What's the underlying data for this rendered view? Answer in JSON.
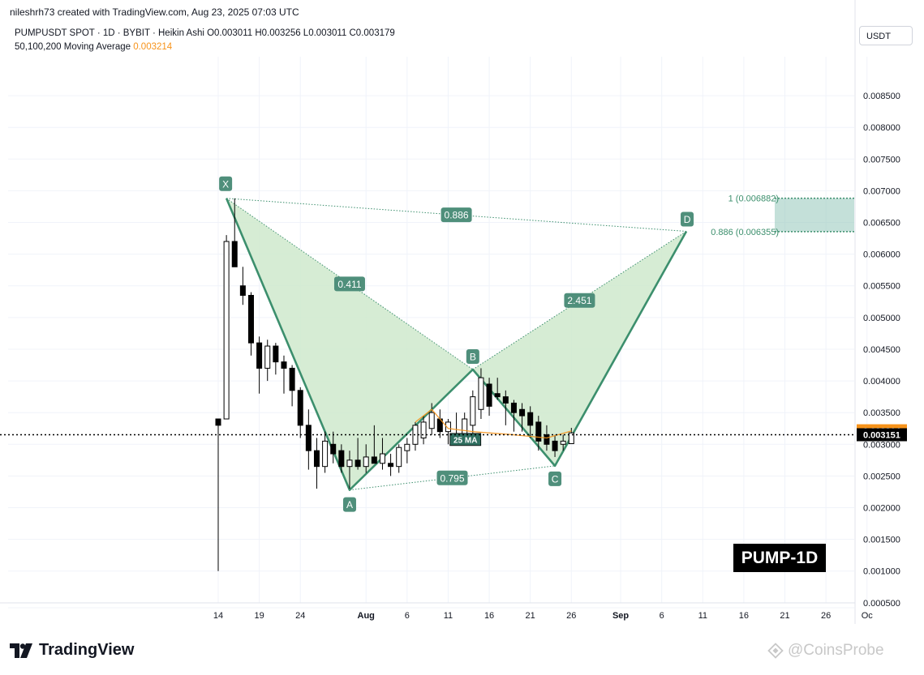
{
  "header": {
    "credit": "nileshrh73 created with TradingView.com, Aug 23, 2025 07:03 UTC",
    "symbol_line": "PUMPUSDT SPOT · 1D · BYBIT · Heikin Ashi  O0.003011  H0.003256  L0.003011  C0.003179",
    "ma_label": "50,100,200 Moving Average",
    "ma_value": "0.003214",
    "currency": "USDT"
  },
  "badge": "PUMP-1D",
  "brand": {
    "logo_text": "TradingView",
    "watermark": "@CoinsProbe"
  },
  "colors": {
    "pattern_fill": "#cfe9cc",
    "pattern_line": "#3c8f6d",
    "label_bg": "#4f8f7b",
    "candle": "#000000",
    "ma_line": "#f7931a",
    "price_label": "#000000",
    "ma_label": "#f7931a",
    "target_zone": "#9dcbc0"
  },
  "chart_data": {
    "type": "candlestick",
    "style": "Heikin Ashi",
    "ylim": [
      0.0003,
      0.0093
    ],
    "x_start": "2025-07-12",
    "x_end": "2025-10-01",
    "y_ticks": [
      "0.008500",
      "0.008000",
      "0.007500",
      "0.007000",
      "0.006500",
      "0.006000",
      "0.005500",
      "0.005000",
      "0.004500",
      "0.004000",
      "0.003500",
      "0.003000",
      "0.002500",
      "0.002000",
      "0.001500",
      "0.001000",
      "0.000500"
    ],
    "x_ticks": [
      {
        "date": "2025-07-14",
        "label": "14"
      },
      {
        "date": "2025-07-19",
        "label": "19"
      },
      {
        "date": "2025-07-24",
        "label": "24"
      },
      {
        "date": "2025-08-01",
        "label": "Aug"
      },
      {
        "date": "2025-08-06",
        "label": "6"
      },
      {
        "date": "2025-08-11",
        "label": "11"
      },
      {
        "date": "2025-08-16",
        "label": "16"
      },
      {
        "date": "2025-08-21",
        "label": "21"
      },
      {
        "date": "2025-08-26",
        "label": "26"
      },
      {
        "date": "2025-09-01",
        "label": "Sep"
      },
      {
        "date": "2025-09-06",
        "label": "6"
      },
      {
        "date": "2025-09-11",
        "label": "11"
      },
      {
        "date": "2025-09-16",
        "label": "16"
      },
      {
        "date": "2025-09-21",
        "label": "21"
      },
      {
        "date": "2025-09-26",
        "label": "26"
      },
      {
        "date": "2025-10-01",
        "label": "Oc"
      }
    ],
    "candles": [
      {
        "date": "2025-07-14",
        "o": 0.0034,
        "h": 0.0034,
        "l": 0.001,
        "c": 0.0033
      },
      {
        "date": "2025-07-15",
        "o": 0.0034,
        "h": 0.0063,
        "l": 0.0034,
        "c": 0.0062
      },
      {
        "date": "2025-07-16",
        "o": 0.0062,
        "h": 0.00688,
        "l": 0.0058,
        "c": 0.0058
      },
      {
        "date": "2025-07-17",
        "o": 0.0055,
        "h": 0.0058,
        "l": 0.0052,
        "c": 0.00535
      },
      {
        "date": "2025-07-18",
        "o": 0.00535,
        "h": 0.0054,
        "l": 0.0044,
        "c": 0.0046
      },
      {
        "date": "2025-07-19",
        "o": 0.0046,
        "h": 0.0047,
        "l": 0.0038,
        "c": 0.0042
      },
      {
        "date": "2025-07-20",
        "o": 0.0042,
        "h": 0.00465,
        "l": 0.004,
        "c": 0.00455
      },
      {
        "date": "2025-07-21",
        "o": 0.00455,
        "h": 0.0046,
        "l": 0.0041,
        "c": 0.0043
      },
      {
        "date": "2025-07-22",
        "o": 0.0043,
        "h": 0.0044,
        "l": 0.0038,
        "c": 0.0042
      },
      {
        "date": "2025-07-23",
        "o": 0.0042,
        "h": 0.00425,
        "l": 0.0036,
        "c": 0.00385
      },
      {
        "date": "2025-07-24",
        "o": 0.00385,
        "h": 0.0039,
        "l": 0.0031,
        "c": 0.0033
      },
      {
        "date": "2025-07-25",
        "o": 0.0033,
        "h": 0.00355,
        "l": 0.0026,
        "c": 0.0029
      },
      {
        "date": "2025-07-26",
        "o": 0.0029,
        "h": 0.0031,
        "l": 0.0023,
        "c": 0.00265
      },
      {
        "date": "2025-07-27",
        "o": 0.00265,
        "h": 0.0032,
        "l": 0.00255,
        "c": 0.00305
      },
      {
        "date": "2025-07-28",
        "o": 0.003,
        "h": 0.0032,
        "l": 0.0027,
        "c": 0.00285
      },
      {
        "date": "2025-07-29",
        "o": 0.0029,
        "h": 0.003,
        "l": 0.00255,
        "c": 0.00265
      },
      {
        "date": "2025-07-30",
        "o": 0.00265,
        "h": 0.0029,
        "l": 0.0023,
        "c": 0.00275
      },
      {
        "date": "2025-07-31",
        "o": 0.00275,
        "h": 0.0031,
        "l": 0.0026,
        "c": 0.00265
      },
      {
        "date": "2025-08-01",
        "o": 0.00265,
        "h": 0.003,
        "l": 0.00255,
        "c": 0.0028
      },
      {
        "date": "2025-08-02",
        "o": 0.0028,
        "h": 0.0033,
        "l": 0.0027,
        "c": 0.0027
      },
      {
        "date": "2025-08-03",
        "o": 0.0027,
        "h": 0.0031,
        "l": 0.0026,
        "c": 0.00285
      },
      {
        "date": "2025-08-04",
        "o": 0.0027,
        "h": 0.00285,
        "l": 0.0025,
        "c": 0.00265
      },
      {
        "date": "2025-08-05",
        "o": 0.00265,
        "h": 0.003,
        "l": 0.00255,
        "c": 0.00295
      },
      {
        "date": "2025-08-06",
        "o": 0.0029,
        "h": 0.0031,
        "l": 0.0027,
        "c": 0.003
      },
      {
        "date": "2025-08-07",
        "o": 0.003,
        "h": 0.00335,
        "l": 0.0029,
        "c": 0.0033
      },
      {
        "date": "2025-08-08",
        "o": 0.0031,
        "h": 0.00345,
        "l": 0.003,
        "c": 0.00335
      },
      {
        "date": "2025-08-09",
        "o": 0.00325,
        "h": 0.00365,
        "l": 0.00315,
        "c": 0.0035
      },
      {
        "date": "2025-08-10",
        "o": 0.0034,
        "h": 0.00355,
        "l": 0.0031,
        "c": 0.0032
      },
      {
        "date": "2025-08-11",
        "o": 0.0032,
        "h": 0.0034,
        "l": 0.003,
        "c": 0.00335
      },
      {
        "date": "2025-08-12",
        "o": 0.00315,
        "h": 0.0035,
        "l": 0.003,
        "c": 0.0031
      },
      {
        "date": "2025-08-13",
        "o": 0.0031,
        "h": 0.0035,
        "l": 0.0031,
        "c": 0.0034
      },
      {
        "date": "2025-08-14",
        "o": 0.0033,
        "h": 0.00385,
        "l": 0.00315,
        "c": 0.00375
      },
      {
        "date": "2025-08-15",
        "o": 0.00355,
        "h": 0.0042,
        "l": 0.0034,
        "c": 0.00405
      },
      {
        "date": "2025-08-16",
        "o": 0.00395,
        "h": 0.00405,
        "l": 0.00345,
        "c": 0.0036
      },
      {
        "date": "2025-08-17",
        "o": 0.0038,
        "h": 0.00405,
        "l": 0.0037,
        "c": 0.00375
      },
      {
        "date": "2025-08-18",
        "o": 0.00375,
        "h": 0.00385,
        "l": 0.0033,
        "c": 0.00365
      },
      {
        "date": "2025-08-19",
        "o": 0.00365,
        "h": 0.0037,
        "l": 0.0032,
        "c": 0.0035
      },
      {
        "date": "2025-08-20",
        "o": 0.00355,
        "h": 0.00365,
        "l": 0.0032,
        "c": 0.00345
      },
      {
        "date": "2025-08-21",
        "o": 0.0035,
        "h": 0.0036,
        "l": 0.0031,
        "c": 0.0033
      },
      {
        "date": "2025-08-22",
        "o": 0.00335,
        "h": 0.00345,
        "l": 0.0029,
        "c": 0.00305
      },
      {
        "date": "2025-08-23",
        "o": 0.00315,
        "h": 0.0033,
        "l": 0.0029,
        "c": 0.003
      },
      {
        "date": "2025-08-24",
        "o": 0.00305,
        "h": 0.00315,
        "l": 0.0028,
        "c": 0.0029
      },
      {
        "date": "2025-08-25",
        "o": 0.003,
        "h": 0.00315,
        "l": 0.0029,
        "c": 0.00305
      },
      {
        "date": "2025-08-26",
        "o": 0.00301,
        "h": 0.00326,
        "l": 0.00301,
        "c": 0.00318
      }
    ],
    "ma_line": {
      "label": "25 MA",
      "points": [
        {
          "date": "2025-08-07",
          "v": 0.00335
        },
        {
          "date": "2025-08-09",
          "v": 0.00355
        },
        {
          "date": "2025-08-11",
          "v": 0.00325
        },
        {
          "date": "2025-08-14",
          "v": 0.0032
        },
        {
          "date": "2025-08-19",
          "v": 0.00315
        },
        {
          "date": "2025-08-23",
          "v": 0.0031
        },
        {
          "date": "2025-08-26",
          "v": 0.00321
        }
      ]
    },
    "harmonic_pattern": {
      "points": [
        {
          "label": "X",
          "date": "2025-07-15",
          "v": 0.00688
        },
        {
          "label": "A",
          "date": "2025-07-30",
          "v": 0.00228
        },
        {
          "label": "B",
          "date": "2025-08-14",
          "v": 0.00418
        },
        {
          "label": "C",
          "date": "2025-08-24",
          "v": 0.00266
        },
        {
          "label": "D",
          "date": "2025-09-09",
          "v": 0.00636
        }
      ],
      "ratios": [
        {
          "label": "0.411",
          "from": "X",
          "to": "B"
        },
        {
          "label": "0.795",
          "from": "A",
          "to": "C"
        },
        {
          "label": "2.451",
          "from": "B",
          "to": "D"
        },
        {
          "label": "0.886",
          "from": "X",
          "to": "D"
        }
      ]
    },
    "target_zone": {
      "upper": 0.006882,
      "lower": 0.006355,
      "upper_label": "1 (0.006882)",
      "lower_label": "0.886 (0.006355)"
    },
    "price_labels": {
      "ma": "0.003214",
      "last": "0.003151",
      "last_value": 0.003151,
      "ma_value": 0.003214
    },
    "grid": true
  }
}
